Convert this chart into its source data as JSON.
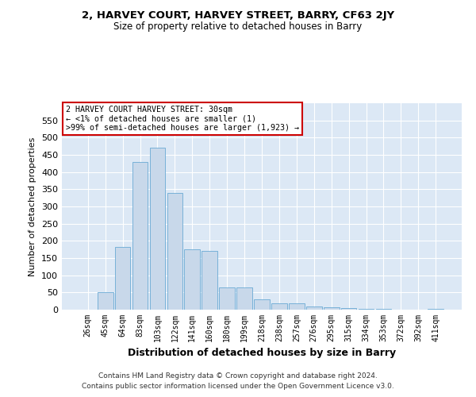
{
  "title": "2, HARVEY COURT, HARVEY STREET, BARRY, CF63 2JY",
  "subtitle": "Size of property relative to detached houses in Barry",
  "xlabel": "Distribution of detached houses by size in Barry",
  "ylabel": "Number of detached properties",
  "bar_color": "#c8d8ea",
  "bar_edge_color": "#6aaad4",
  "background_color": "#dce8f5",
  "categories": [
    "26sqm",
    "45sqm",
    "64sqm",
    "83sqm",
    "103sqm",
    "122sqm",
    "141sqm",
    "160sqm",
    "180sqm",
    "199sqm",
    "218sqm",
    "238sqm",
    "257sqm",
    "276sqm",
    "295sqm",
    "315sqm",
    "334sqm",
    "353sqm",
    "372sqm",
    "392sqm",
    "411sqm"
  ],
  "values": [
    1,
    50,
    182,
    430,
    470,
    340,
    175,
    170,
    65,
    65,
    30,
    18,
    18,
    10,
    7,
    5,
    3,
    2,
    1,
    1,
    2
  ],
  "ylim": [
    0,
    600
  ],
  "yticks": [
    0,
    50,
    100,
    150,
    200,
    250,
    300,
    350,
    400,
    450,
    500,
    550
  ],
  "annotation_text": "2 HARVEY COURT HARVEY STREET: 30sqm\n← <1% of detached houses are smaller (1)\n>99% of semi-detached houses are larger (1,923) →",
  "annotation_box_color": "#ffffff",
  "annotation_box_edge": "#cc0000",
  "footer1": "Contains HM Land Registry data © Crown copyright and database right 2024.",
  "footer2": "Contains public sector information licensed under the Open Government Licence v3.0."
}
